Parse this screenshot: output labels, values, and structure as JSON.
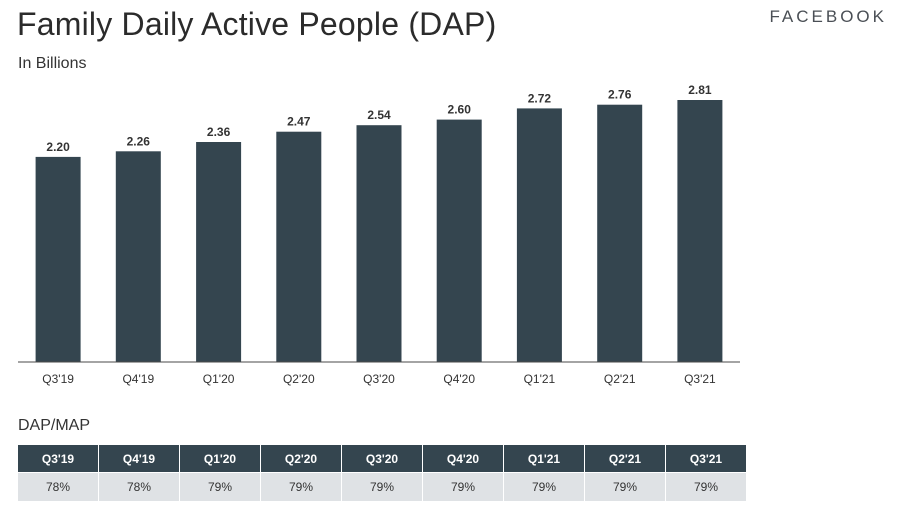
{
  "header": {
    "title": "Family Daily Active People (DAP)",
    "subtitle": "In Billions",
    "brand": "FACEBOOK"
  },
  "colors": {
    "bar": "#34454f",
    "axis": "#4a4a4a",
    "table_header": "#34454f",
    "table_row": "#dfe2e5"
  },
  "chart_data": {
    "type": "bar",
    "categories": [
      "Q3'19",
      "Q4'19",
      "Q1'20",
      "Q2'20",
      "Q3'20",
      "Q4'20",
      "Q1'21",
      "Q2'21",
      "Q3'21"
    ],
    "values": [
      2.2,
      2.26,
      2.36,
      2.47,
      2.54,
      2.6,
      2.72,
      2.76,
      2.81
    ],
    "data_labels": [
      "2.20",
      "2.26",
      "2.36",
      "2.47",
      "2.54",
      "2.60",
      "2.72",
      "2.76",
      "2.81"
    ],
    "title": "Family Daily Active People (DAP)",
    "subtitle": "In Billions",
    "ylim": [
      0,
      2.81
    ],
    "grid": false,
    "legend": "none"
  },
  "table": {
    "title": "DAP/MAP",
    "headers": [
      "Q3'19",
      "Q4'19",
      "Q1'20",
      "Q2'20",
      "Q3'20",
      "Q4'20",
      "Q1'21",
      "Q2'21",
      "Q3'21"
    ],
    "values": [
      "78%",
      "78%",
      "79%",
      "79%",
      "79%",
      "79%",
      "79%",
      "79%",
      "79%"
    ]
  }
}
